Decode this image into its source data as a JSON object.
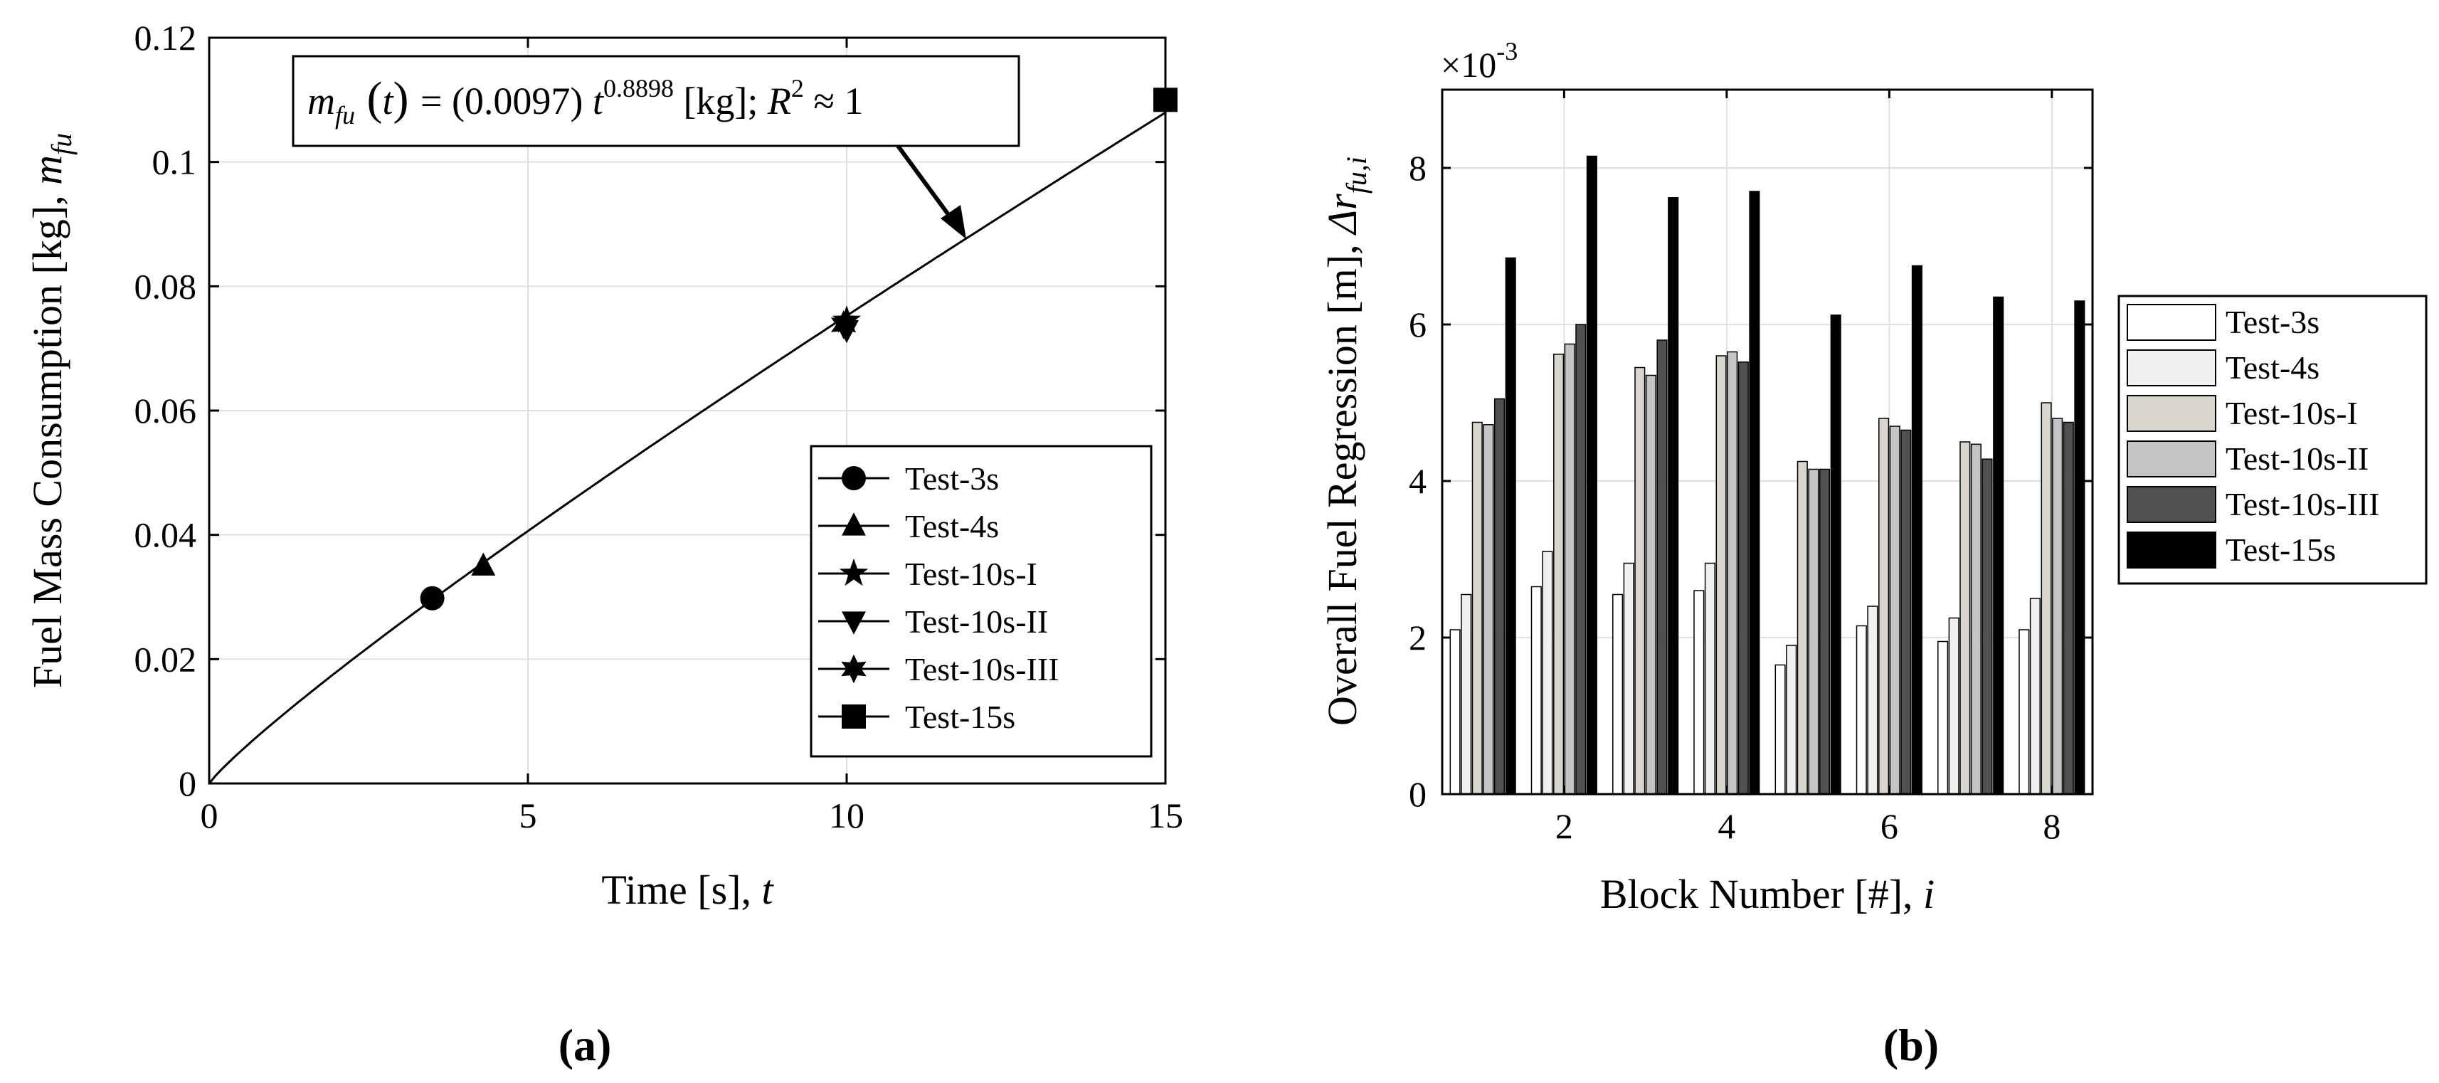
{
  "chart_data": [
    {
      "type": "line",
      "panel_label": "(a)",
      "xlabel": "Time [s],",
      "xlabel_var": "t",
      "ylabel": "Fuel Mass Consumption [kg],",
      "ylabel_var": "m",
      "ylabel_var_sub": "fu",
      "xlim": [
        0,
        15
      ],
      "ylim": [
        0,
        0.12
      ],
      "x_ticks": [
        0,
        5,
        10,
        15
      ],
      "x_tick_labels": [
        "0",
        "5",
        "10",
        "15"
      ],
      "y_ticks": [
        0,
        0.02,
        0.04,
        0.06,
        0.08,
        0.1,
        0.12
      ],
      "y_tick_labels": [
        "0",
        "0.02",
        "0.04",
        "0.06",
        "0.08",
        "0.1",
        "0.12"
      ],
      "grid": true,
      "fit": {
        "coefficient": 0.0097,
        "exponent": 0.8898,
        "eq_lhs": "m",
        "eq_lhs_sub": "fu",
        "eq_lhs_arg": "t",
        "eq_mid": "= (0.0097)",
        "eq_var": "t",
        "eq_exp": "0.8898",
        "eq_unit": "[kg];",
        "eq_r": "R",
        "eq_r_exp": "2",
        "eq_r_val": "≈ 1"
      },
      "series": [
        {
          "name": "Test-3s",
          "marker": "circle",
          "x": 3.5,
          "y": 0.0298
        },
        {
          "name": "Test-4s",
          "marker": "triangle-up",
          "x": 4.3,
          "y": 0.035
        },
        {
          "name": "Test-10s-I",
          "marker": "pentagram",
          "x": 10.0,
          "y": 0.0745
        },
        {
          "name": "Test-10s-II",
          "marker": "triangle-down",
          "x": 10.0,
          "y": 0.073
        },
        {
          "name": "Test-10s-III",
          "marker": "hexagram",
          "x": 9.95,
          "y": 0.0738
        },
        {
          "name": "Test-15s",
          "marker": "square",
          "x": 15.0,
          "y": 0.11
        }
      ],
      "legend_location": "lower-right"
    },
    {
      "type": "bar",
      "panel_label": "(b)",
      "xlabel": "Block Number [#],",
      "xlabel_var": "i",
      "ylabel": "Overall Fuel Regression [m],",
      "ylabel_var": "Δr",
      "ylabel_var_sub": "fu,i",
      "scale_label": "×10",
      "scale_exp": "-3",
      "categories": [
        1,
        2,
        3,
        4,
        5,
        6,
        7,
        8
      ],
      "x_ticks": [
        2,
        4,
        6,
        8
      ],
      "x_tick_labels": [
        "2",
        "4",
        "6",
        "8"
      ],
      "ylim": [
        0,
        9
      ],
      "y_ticks": [
        0,
        2,
        4,
        6,
        8
      ],
      "y_tick_labels": [
        "0",
        "2",
        "4",
        "6",
        "8"
      ],
      "grid": true,
      "series": [
        {
          "name": "Test-3s",
          "color": "#ffffff",
          "values": [
            2.1,
            2.65,
            2.55,
            2.6,
            1.65,
            2.15,
            1.95,
            2.1
          ]
        },
        {
          "name": "Test-4s",
          "color": "#f0f0f0",
          "values": [
            2.55,
            3.1,
            2.95,
            2.95,
            1.9,
            2.4,
            2.25,
            2.5
          ]
        },
        {
          "name": "Test-10s-I",
          "color": "#d8d5cf",
          "values": [
            4.75,
            5.62,
            5.45,
            5.6,
            4.25,
            4.8,
            4.5,
            5.0
          ]
        },
        {
          "name": "Test-10s-II",
          "color": "#c4c4c4",
          "values": [
            4.72,
            5.75,
            5.35,
            5.65,
            4.15,
            4.7,
            4.47,
            4.8
          ]
        },
        {
          "name": "Test-10s-III",
          "color": "#505050",
          "values": [
            5.05,
            6.0,
            5.8,
            5.52,
            4.15,
            4.65,
            4.28,
            4.75
          ]
        },
        {
          "name": "Test-15s",
          "color": "#000000",
          "values": [
            6.85,
            8.15,
            7.62,
            7.7,
            6.12,
            6.75,
            6.35,
            6.3
          ]
        }
      ],
      "legend_location": "outside-right"
    }
  ]
}
